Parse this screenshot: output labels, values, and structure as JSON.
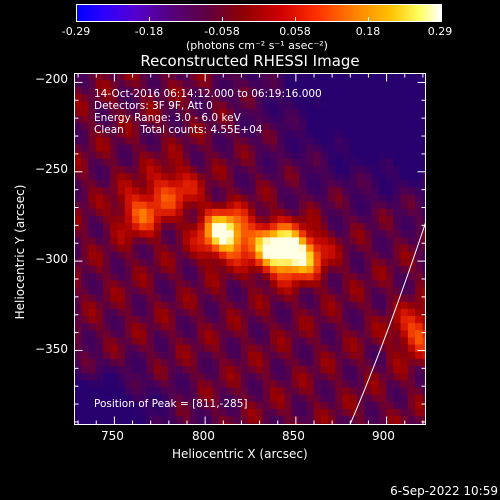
{
  "colorbar": {
    "ticks": [
      "-0.29",
      "-0.18",
      "-0.058",
      "0.058",
      "0.18",
      "0.29"
    ],
    "range": [
      -0.29,
      0.29
    ],
    "unit_label": "(photons cm⁻² s⁻¹ asec⁻²)"
  },
  "chart_data": {
    "type": "heatmap",
    "title": "Reconstructed RHESSI Image",
    "xlabel": "Heliocentric X (arcsec)",
    "ylabel": "Heliocentric Y (arcsec)",
    "xlim": [
      728,
      922
    ],
    "ylim": [
      -392,
      -195
    ],
    "xticks": [
      750,
      800,
      850,
      900
    ],
    "yticks": [
      -200,
      -250,
      -300,
      -350
    ],
    "colormap": "red-temperature (blue-purple-red-orange-yellow-white)",
    "sources": [
      {
        "x": 811,
        "y": -285,
        "peak": 0.29
      },
      {
        "x": 839,
        "y": -293,
        "peak": 0.27
      },
      {
        "x": 853,
        "y": -297,
        "peak": 0.22
      },
      {
        "x": 765,
        "y": -273,
        "peak": 0.13
      },
      {
        "x": 783,
        "y": -260,
        "peak": 0.11
      },
      {
        "x": 918,
        "y": -340,
        "peak": 0.13
      }
    ],
    "annotations": {
      "time": "14-Oct-2016 06:14:12.000 to 06:19:16.000",
      "detectors": "Detectors: 3F 9F, Att 0",
      "energy": "Energy Range: 3.0 - 6.0 keV",
      "clean": "Clean     Total counts: 4.55E+04",
      "peak": "Position of Peak = [811,-285]"
    }
  },
  "footer": {
    "date": "6-Sep-2022 10:59"
  }
}
